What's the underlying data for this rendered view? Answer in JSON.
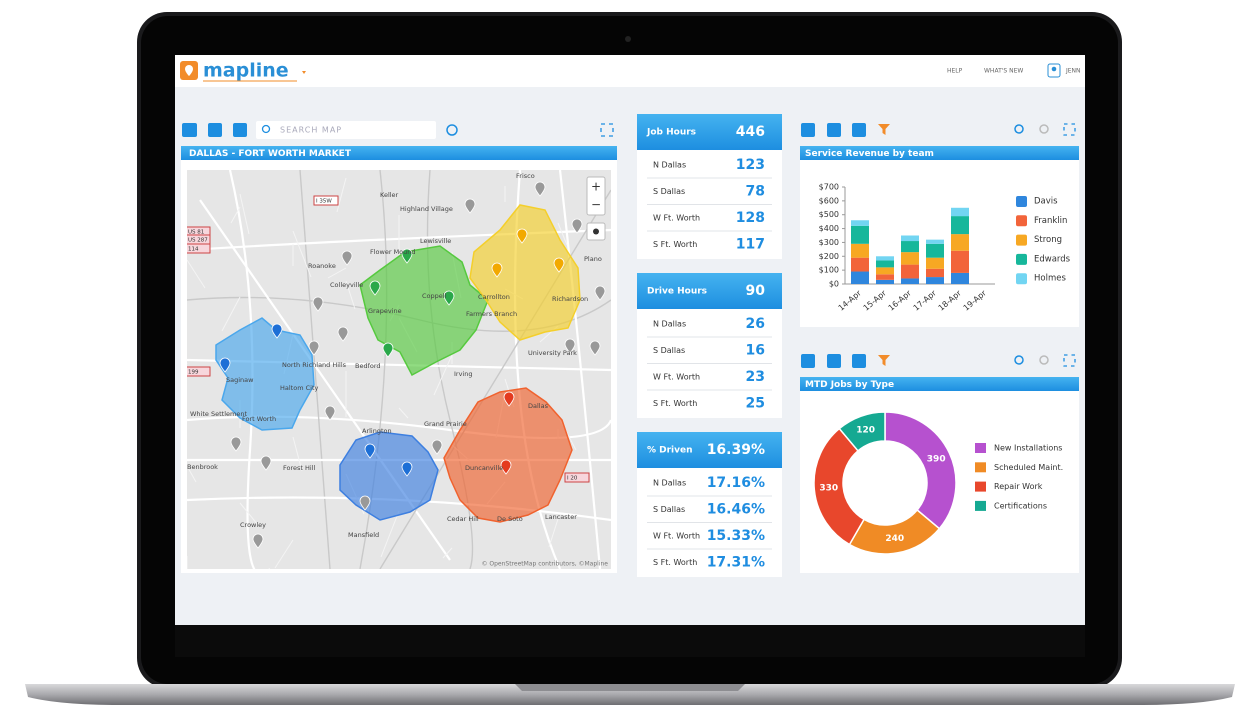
{
  "header": {
    "logo": "mapline",
    "nav": [
      "HELP",
      "WHAT'S NEW",
      "JENN"
    ]
  },
  "map": {
    "search_placeholder": "SEARCH MAP",
    "title": "DALLAS - FORT WORTH MARKET",
    "attribution": "© OpenStreetMap contributors, ©Mapline",
    "labels": [
      "Frisco",
      "Highland Village",
      "Lewisville",
      "Flower Mound",
      "Roanoke",
      "Coppell",
      "Grapevine",
      "Carrollton",
      "Plano",
      "Richardson",
      "Farmers Branch",
      "Saginaw",
      "North Richland Hills",
      "Haltom City",
      "Bedford",
      "Irving",
      "University Park",
      "Dallas",
      "Fort Worth",
      "Arlington",
      "Grand Prairie",
      "Benbrook",
      "Forest Hill",
      "Duncanville",
      "Cedar Hill",
      "De Soto",
      "Lancaster",
      "Crowley",
      "Mansfield",
      "White Settlement",
      "Keller",
      "Colleyville"
    ],
    "shields": [
      "I 35W",
      "US 81",
      "US 287",
      "114",
      "199",
      "I 20"
    ]
  },
  "cards": [
    {
      "title": "Job Hours",
      "value": "446",
      "rows": [
        {
          "label": "N Dallas",
          "value": "123"
        },
        {
          "label": "S Dallas",
          "value": "78"
        },
        {
          "label": "W Ft. Worth",
          "value": "128"
        },
        {
          "label": "S Ft. Worth",
          "value": "117"
        }
      ]
    },
    {
      "title": "Drive Hours",
      "value": "90",
      "rows": [
        {
          "label": "N Dallas",
          "value": "26"
        },
        {
          "label": "S Dallas",
          "value": "16"
        },
        {
          "label": "W Ft. Worth",
          "value": "23"
        },
        {
          "label": "S Ft. Worth",
          "value": "25"
        }
      ]
    },
    {
      "title": "% Driven",
      "value": "16.39%",
      "rows": [
        {
          "label": "N Dallas",
          "value": "17.16%"
        },
        {
          "label": "S Dallas",
          "value": "16.46%"
        },
        {
          "label": "W Ft. Worth",
          "value": "15.33%"
        },
        {
          "label": "S Ft. Worth",
          "value": "17.31%"
        }
      ]
    }
  ],
  "chart_data": [
    {
      "type": "bar",
      "title": "Service Revenue by team",
      "categories": [
        "14-Apr",
        "15-Apr",
        "16-Apr",
        "17-Apr",
        "18-Apr",
        "19-Apr"
      ],
      "series": [
        {
          "name": "Davis",
          "color": "#2f86dd",
          "values": [
            90,
            30,
            40,
            50,
            80,
            null
          ]
        },
        {
          "name": "Franklin",
          "color": "#f2643a",
          "values": [
            100,
            40,
            100,
            60,
            160,
            null
          ]
        },
        {
          "name": "Strong",
          "color": "#f7a823",
          "values": [
            100,
            50,
            90,
            80,
            120,
            null
          ]
        },
        {
          "name": "Edwards",
          "color": "#16b79b",
          "values": [
            130,
            50,
            80,
            100,
            130,
            null
          ]
        },
        {
          "name": "Holmes",
          "color": "#72d5f2",
          "values": [
            40,
            30,
            40,
            30,
            60,
            null
          ]
        }
      ],
      "stacked": true,
      "ylim": [
        0,
        700
      ],
      "yticks": [
        {
          "value": 0,
          "label": "$0"
        },
        {
          "value": 100,
          "label": "$100"
        },
        {
          "value": 200,
          "label": "$200"
        },
        {
          "value": 300,
          "label": "$300"
        },
        {
          "value": 400,
          "label": "$400"
        },
        {
          "value": 500,
          "label": "$500"
        },
        {
          "value": 600,
          "label": "$600"
        },
        {
          "value": 700,
          "label": "$700"
        }
      ]
    },
    {
      "type": "donut",
      "title": "MTD Jobs by Type",
      "categories": [
        "New Installations",
        "Scheduled Maint.",
        "Repair Work",
        "Certifications"
      ],
      "values": [
        390,
        240,
        330,
        120
      ],
      "colors": [
        "#b651cf",
        "#f08b25",
        "#e8472c",
        "#15a992"
      ]
    }
  ]
}
